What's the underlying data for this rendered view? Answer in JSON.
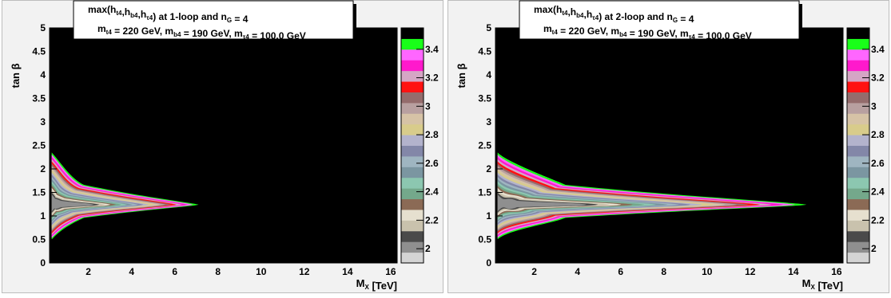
{
  "colors": {
    "plot_background": "#000000",
    "pad_background": "#f2f2f2",
    "scale_bands": [
      "#d4d4d4",
      "#8f8f8f",
      "#4a4a4a",
      "#c9c2ad",
      "#e6e0cf",
      "#8b6a55",
      "#74a88b",
      "#8cc7b0",
      "#7b96a1",
      "#9fb5c1",
      "#8387a8",
      "#b3b3cc",
      "#d8cc8b",
      "#d6c3a6",
      "#b8a0a0",
      "#946c6c",
      "#ff1212",
      "#d5a6c5",
      "#ff19cc",
      "#ff66ff",
      "#19ff19",
      "#000000"
    ]
  },
  "chart_data": [
    {
      "type": "heatmap",
      "title": {
        "base": "max(h",
        "s1": "t4",
        "mid1": ",h",
        "s2": "b4",
        "mid2": ",h",
        "s3": "τ4",
        "tail": ") at 1-loop  and  n",
        "s4": "G",
        "end": " = 4"
      },
      "subtitle": {
        "p1": "m",
        "s1": "t4",
        "p2": " = 220 GeV, m",
        "s2": "b4",
        "p3": " = 190 GeV, m",
        "s3": "τ4",
        "p4": " = 100.0 GeV"
      },
      "xlabel": {
        "base": "M",
        "sub": "X",
        "unit": " [TeV]"
      },
      "ylabel": "tan β",
      "xlim": [
        0.2,
        16.3
      ],
      "ylim": [
        0,
        5
      ],
      "x_ticks": [
        "2",
        "4",
        "6",
        "8",
        "10",
        "12",
        "14",
        "16"
      ],
      "y_ticks": [
        "0",
        "0.5",
        "1",
        "1.5",
        "2",
        "2.5",
        "3",
        "3.5",
        "4",
        "4.5",
        "5"
      ],
      "z_range": [
        1.9,
        3.55
      ],
      "z_ticks": [
        "2",
        "2.2",
        "2.4",
        "2.6",
        "2.8",
        "3",
        "3.2",
        "3.4"
      ],
      "region": {
        "x_tip": 7.1,
        "tip_tanb": 1.24,
        "left_upper_tanb": 2.35,
        "left_lower_tanb": 0.5
      }
    },
    {
      "type": "heatmap",
      "title": {
        "base": "max(h",
        "s1": "t4",
        "mid1": ",h",
        "s2": "b4",
        "mid2": ",h",
        "s3": "τ4",
        "tail": ") at 2-loop  and  n",
        "s4": "G",
        "end": " = 4"
      },
      "subtitle": {
        "p1": "m",
        "s1": "t4",
        "p2": " = 220 GeV, m",
        "s2": "b4",
        "p3": " = 190 GeV, m",
        "s3": "τ4",
        "p4": " = 100.0 GeV"
      },
      "xlabel": {
        "base": "M",
        "sub": "X",
        "unit": " [TeV]"
      },
      "ylabel": "tan β",
      "xlim": [
        0.2,
        16.3
      ],
      "ylim": [
        0,
        5
      ],
      "x_ticks": [
        "2",
        "4",
        "6",
        "8",
        "10",
        "12",
        "14",
        "16"
      ],
      "y_ticks": [
        "0",
        "0.5",
        "1",
        "1.5",
        "2",
        "2.5",
        "3",
        "3.5",
        "4",
        "4.5",
        "5"
      ],
      "z_range": [
        1.9,
        3.55
      ],
      "z_ticks": [
        "2",
        "2.2",
        "2.4",
        "2.6",
        "2.8",
        "3",
        "3.2",
        "3.4"
      ],
      "region": {
        "x_tip": 14.6,
        "tip_tanb": 1.24,
        "left_upper_tanb": 2.35,
        "left_lower_tanb": 0.5
      }
    }
  ]
}
